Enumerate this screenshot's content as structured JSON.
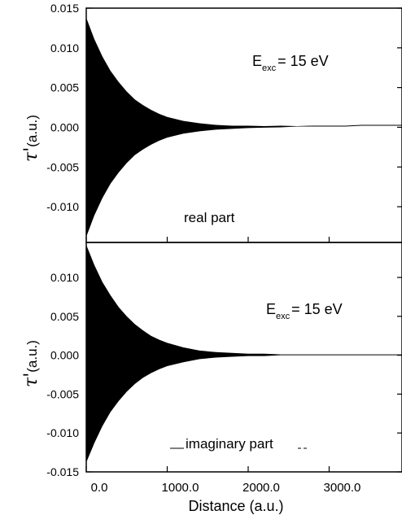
{
  "chart_data": [
    {
      "type": "area",
      "panel": "top",
      "annotation_main": "E",
      "annotation_sub": "exc",
      "annotation_value": "= 15 eV",
      "caption": "real part",
      "ylabel_symbol": "τ'",
      "ylabel_unit": "(a.u.)",
      "xlim": [
        0,
        3900
      ],
      "ylim": [
        -0.0145,
        0.015
      ],
      "yticks": [
        0.015,
        0.01,
        0.005,
        0.0,
        -0.005,
        -0.01
      ],
      "ytick_labels": [
        "0.015",
        "0.010",
        "0.005",
        "0.000",
        "-0.005",
        "-0.010"
      ],
      "xticks": [
        0,
        1000,
        2000,
        3000
      ],
      "envelope": {
        "x": [
          0,
          100,
          200,
          300,
          400,
          500,
          600,
          700,
          800,
          900,
          1000,
          1200,
          1400,
          1600,
          1800,
          2000,
          2200,
          2400,
          2600,
          2800,
          3000,
          3200,
          3400,
          3600,
          3800,
          3900
        ],
        "upper": [
          0.0138,
          0.0111,
          0.0089,
          0.0071,
          0.0057,
          0.0045,
          0.0035,
          0.0028,
          0.0022,
          0.0017,
          0.0013,
          0.0008,
          0.0005,
          0.0003,
          0.0002,
          0.0002,
          0.00015,
          0.0002,
          0.00015,
          0.0002,
          0.0002,
          0.0002,
          0.0003,
          0.0003,
          0.0003,
          0.0003
        ],
        "lower": [
          -0.0138,
          -0.0111,
          -0.0089,
          -0.0071,
          -0.0057,
          -0.0045,
          -0.0035,
          -0.0028,
          -0.0022,
          -0.0017,
          -0.0013,
          -0.0008,
          -0.0005,
          -0.0003,
          -0.0002,
          -0.0001,
          -5e-05,
          0.0,
          0.0001,
          0.0001,
          0.0001,
          0.0001,
          0.0002,
          0.0002,
          0.0002,
          0.0002
        ]
      }
    },
    {
      "type": "area",
      "panel": "bottom",
      "annotation_main": "E",
      "annotation_sub": "exc",
      "annotation_value": "= 15 eV",
      "caption": "imaginary part",
      "ylabel_symbol": "τ'",
      "ylabel_unit": "(a.u.)",
      "xlabel": "Distance (a.u.)",
      "xlim": [
        0,
        3900
      ],
      "ylim": [
        -0.015,
        0.0145
      ],
      "yticks": [
        0.01,
        0.005,
        0.0,
        -0.005,
        -0.01,
        -0.015
      ],
      "ytick_labels": [
        "0.010",
        "0.005",
        "0.000",
        "-0.005",
        "-0.010",
        "-0.015"
      ],
      "xticks": [
        0,
        1000,
        2000,
        3000
      ],
      "xtick_labels": [
        "0.0",
        "1000.0",
        "2000.0",
        "3000.0"
      ],
      "envelope": {
        "x": [
          0,
          100,
          200,
          300,
          400,
          500,
          600,
          700,
          800,
          900,
          1000,
          1200,
          1400,
          1600,
          1800,
          2000,
          2200,
          2400,
          2600,
          2800,
          3000,
          3200,
          3400,
          3600,
          3800,
          3900
        ],
        "upper": [
          0.0142,
          0.0116,
          0.0094,
          0.0077,
          0.0062,
          0.005,
          0.004,
          0.0032,
          0.0025,
          0.002,
          0.0016,
          0.001,
          0.0006,
          0.0004,
          0.0003,
          0.0002,
          0.0002,
          0.0001,
          0.0001,
          0.0001,
          0.0001,
          0.0001,
          0.0001,
          0.0001,
          0.0001,
          0.0001
        ],
        "lower": [
          -0.0138,
          -0.0113,
          -0.0091,
          -0.0073,
          -0.0059,
          -0.0047,
          -0.0037,
          -0.0029,
          -0.0023,
          -0.0018,
          -0.0014,
          -0.0009,
          -0.0005,
          -0.0003,
          -0.0002,
          -0.0001,
          -0.0001,
          0.0,
          0.0,
          0.0,
          0.0,
          0.0,
          0.0,
          0.0,
          0.0,
          0.0
        ]
      }
    }
  ]
}
